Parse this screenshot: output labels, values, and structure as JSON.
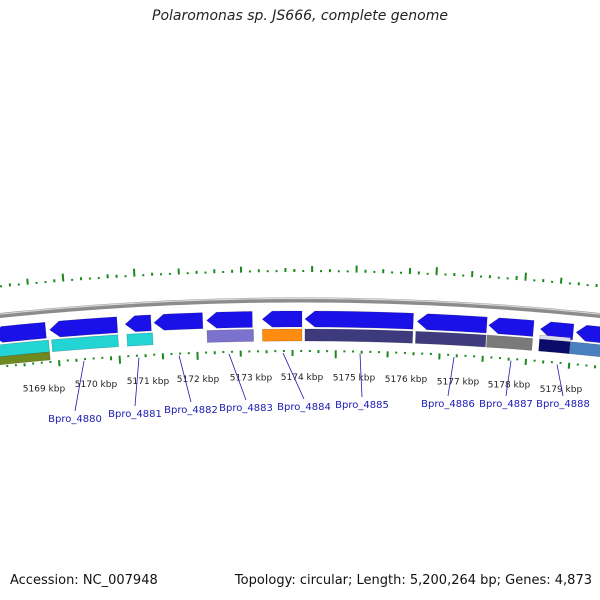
{
  "title": "Polaromonas sp. JS666, complete genome",
  "footer": {
    "accession": "Accession: NC_007948",
    "summary": "Topology: circular; Length: 5,200,264 bp; Genes: 4,873"
  },
  "colors": {
    "backbone": "#8c8c8c",
    "gene_forward": "#1a10e8",
    "gene_reverse": "#1a10e8",
    "cds_cyan": "#22d4d4",
    "cds_olive": "#6e8a1e",
    "cds_lavender": "#7a72cc",
    "cds_orange": "#ff8c10",
    "cds_slate": "#3d3a7e",
    "cds_gray": "#7a7a7a",
    "cds_navy": "#0b0b6a",
    "cds_steel": "#4a7fc0",
    "gc_tick": "#1a8a1a",
    "label": "#1a1ab0"
  },
  "scale": {
    "kbp_labels": [
      "5169 kbp",
      "5170 kbp",
      "5171 kbp",
      "5172 kbp",
      "5173 kbp",
      "5174 kbp",
      "5175 kbp",
      "5176 kbp",
      "5177 kbp",
      "5178 kbp",
      "5179 kbp"
    ]
  },
  "gene_labels": [
    "Bpro_4880",
    "Bpro_4881",
    "Bpro_4882",
    "Bpro_4883",
    "Bpro_4884",
    "Bpro_4885",
    "Bpro_4886",
    "Bpro_4887",
    "Bpro_4888"
  ]
}
